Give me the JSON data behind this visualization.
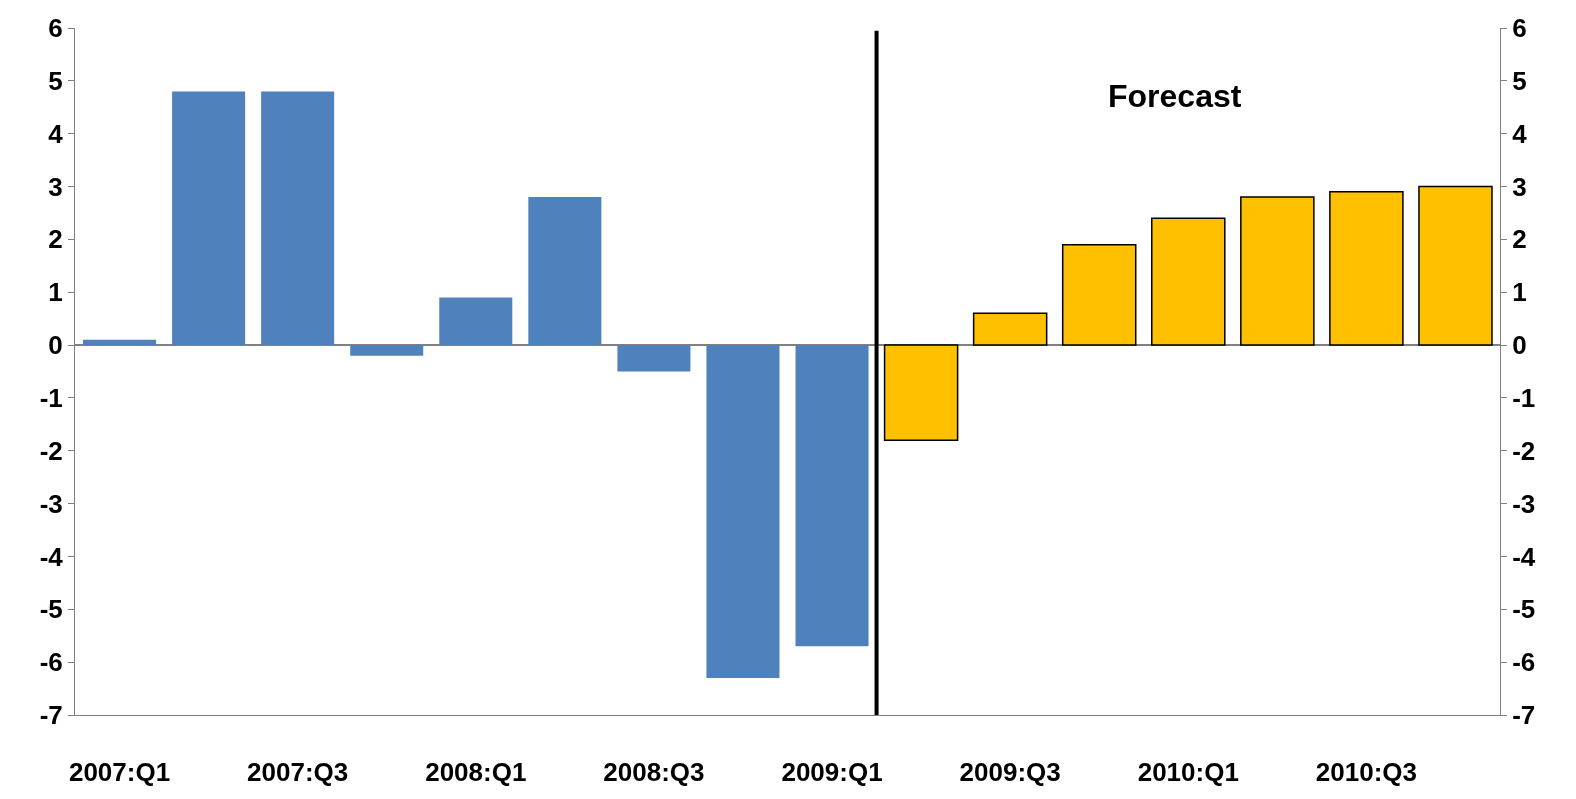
{
  "chart_data": {
    "type": "bar",
    "categories": [
      "2007:Q1",
      null,
      "2007:Q3",
      null,
      "2008:Q1",
      null,
      "2008:Q3",
      null,
      "2009:Q1",
      null,
      "2009:Q3",
      null,
      "2010:Q1",
      null,
      "2010:Q3",
      null
    ],
    "series": [
      {
        "color": "#4f81bd",
        "values": [
          0.1,
          4.8,
          4.8,
          -0.2,
          0.9,
          2.8,
          -0.5,
          -6.3,
          -5.7,
          null,
          null,
          null,
          null,
          null,
          null,
          null
        ]
      },
      {
        "color": "#ffc000",
        "values": [
          null,
          null,
          null,
          null,
          null,
          null,
          null,
          null,
          null,
          -1.8,
          0.6,
          1.9,
          2.4,
          2.8,
          2.9,
          3.0
        ]
      }
    ],
    "stacked": true,
    "ylim": [
      -7,
      6
    ],
    "yticks": [
      -7,
      -6,
      -5,
      -4,
      -3,
      -2,
      -1,
      0,
      1,
      2,
      3,
      4,
      5,
      6
    ],
    "y2lim": [
      -7,
      6
    ],
    "y2ticks": [
      -7,
      -6,
      -5,
      -4,
      -3,
      -2,
      -1,
      0,
      1,
      2,
      3,
      4,
      5,
      6
    ],
    "annotations": [
      "Forecast"
    ]
  }
}
